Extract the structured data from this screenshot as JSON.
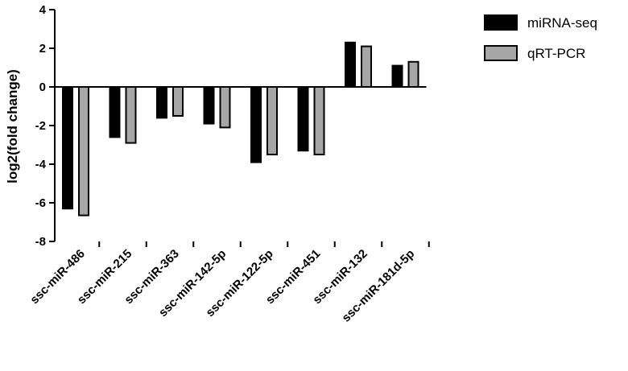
{
  "chart_data": {
    "type": "bar",
    "title": "",
    "xlabel": "",
    "ylabel": "log2(fold change)",
    "ylim": [
      -8,
      4
    ],
    "yticks": [
      4,
      2,
      0,
      -2,
      -4,
      -6,
      -8
    ],
    "grid": false,
    "legend_position": "top-right",
    "categories": [
      "ssc-miR-486",
      "ssc-miR-215",
      "ssc-miR-363",
      "ssc-miR-142-5p",
      "ssc-miR-122-5p",
      "ssc-miR-451",
      "ssc-miR-132",
      "ssc-miR-181d-5p"
    ],
    "series": [
      {
        "name": "miRNA-seq",
        "color": "#000000",
        "values": [
          -6.3,
          -2.6,
          -1.6,
          -1.9,
          -3.9,
          -3.3,
          2.3,
          1.1
        ]
      },
      {
        "name": "qRT-PCR",
        "color": "#a6a6a6",
        "values": [
          -6.65,
          -2.9,
          -1.5,
          -2.1,
          -3.5,
          -3.5,
          2.1,
          1.3
        ]
      }
    ]
  }
}
